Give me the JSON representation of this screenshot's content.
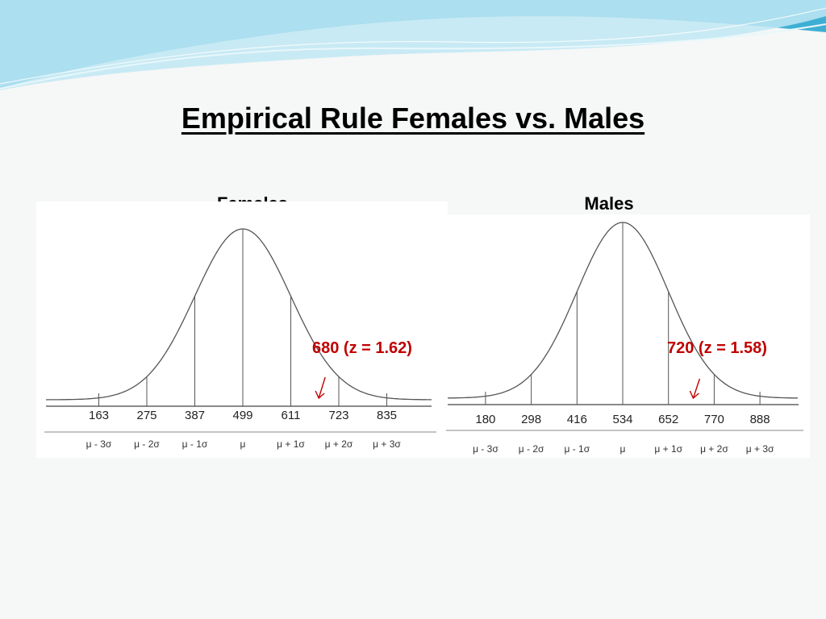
{
  "slide": {
    "title": "Empirical Rule Females vs. Males",
    "colors": {
      "background": "#f6f7f7",
      "wave_dark": "#2aa6cf",
      "wave_light": "#bfe8f3",
      "annotation": "#c00000"
    }
  },
  "panels": [
    {
      "title": "Females",
      "mean": 499,
      "sd": 112,
      "tick_values": [
        "163",
        "275",
        "387",
        "499",
        "611",
        "723",
        "835"
      ],
      "sigma_labels": [
        "μ - 3σ",
        "μ - 2σ",
        "μ - 1σ",
        "μ",
        "μ + 1σ",
        "μ + 2σ",
        "μ + 3σ"
      ],
      "marker_value": 680,
      "annotation": "680 (z = 1.62)"
    },
    {
      "title": "Males",
      "mean": 534,
      "sd": 118,
      "tick_values": [
        "180",
        "298",
        "416",
        "534",
        "652",
        "770",
        "888"
      ],
      "sigma_labels": [
        "μ - 3σ",
        "μ - 2σ",
        "μ - 1σ",
        "μ",
        "μ + 1σ",
        "μ + 2σ",
        "μ + 3σ"
      ],
      "marker_value": 720,
      "annotation": "720 (z = 1.58)"
    }
  ]
}
